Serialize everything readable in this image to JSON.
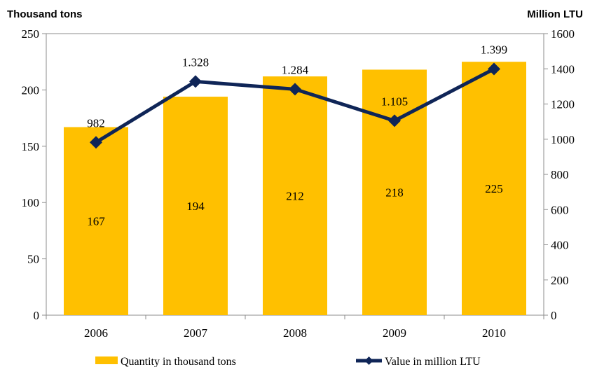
{
  "chart_data": {
    "type": "bar",
    "categories": [
      "2006",
      "2007",
      "2008",
      "2009",
      "2010"
    ],
    "series": [
      {
        "name": "Quantity in thousand tons",
        "type": "bar",
        "axis": "left",
        "values": [
          167,
          194,
          212,
          218,
          225
        ],
        "labels": [
          "167",
          "194",
          "212",
          "218",
          "225"
        ],
        "color": "#FFC000"
      },
      {
        "name": "Value in million LTU",
        "type": "line",
        "axis": "right",
        "marker": "diamond",
        "values": [
          982,
          1328,
          1284,
          1105,
          1399
        ],
        "labels": [
          "982",
          "1.328",
          "1.284",
          "1.105",
          "1.399"
        ],
        "color": "#0F2557"
      }
    ],
    "ylabel": "Thousand tons",
    "y2label": "Million LTU",
    "ylim": [
      0,
      250
    ],
    "y2lim": [
      0,
      1600
    ],
    "yticks": [
      "0",
      "50",
      "100",
      "150",
      "200",
      "250"
    ],
    "y2ticks": [
      "0",
      "200",
      "400",
      "600",
      "800",
      "1000",
      "1200",
      "1400",
      "1600"
    ],
    "grid": false,
    "legend": "bottom"
  }
}
